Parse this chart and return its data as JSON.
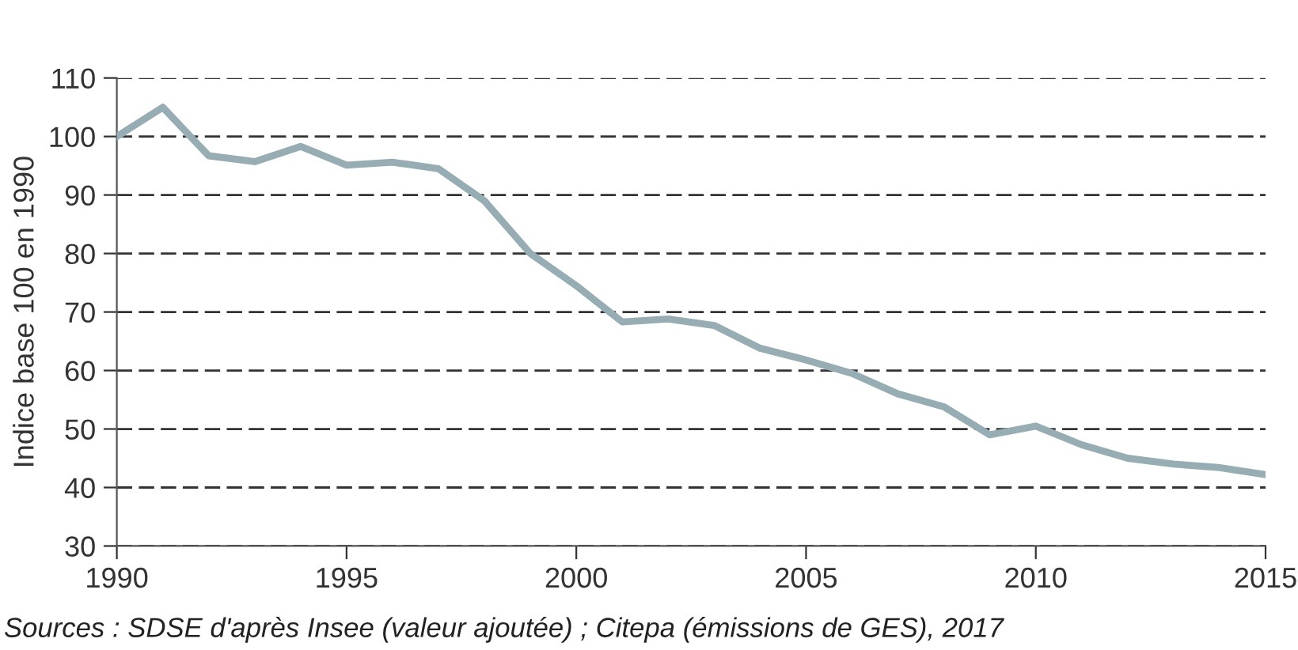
{
  "chart_data": {
    "type": "line",
    "ylabel": "Indice base 100 en 1990",
    "x": [
      1990,
      1991,
      1992,
      1993,
      1994,
      1995,
      1996,
      1997,
      1998,
      1999,
      2000,
      2001,
      2002,
      2003,
      2004,
      2005,
      2006,
      2007,
      2008,
      2009,
      2010,
      2011,
      2012,
      2013,
      2014,
      2015
    ],
    "series": [
      {
        "color": "#96adb3",
        "values": [
          100,
          105,
          96.7,
          95.7,
          98.3,
          95.1,
          95.6,
          94.5,
          89,
          80,
          74.5,
          68.3,
          68.8,
          67.7,
          63.8,
          61.8,
          59.5,
          56,
          53.8,
          49,
          50.5,
          47.3,
          45,
          44,
          43.4,
          42.2
        ]
      }
    ],
    "xlim": [
      1990,
      2015
    ],
    "xticks": [
      1990,
      1995,
      2000,
      2005,
      2010,
      2015
    ],
    "ylim": [
      30,
      110
    ],
    "yticks": [
      30,
      40,
      50,
      60,
      70,
      80,
      90,
      100,
      110
    ],
    "grid": "y",
    "line_style": "solid",
    "marker": "none",
    "annotations": [
      "Sources : SDSE d'après Insee (valeur ajoutée) ; Citepa (émissions de GES), 2017"
    ]
  }
}
